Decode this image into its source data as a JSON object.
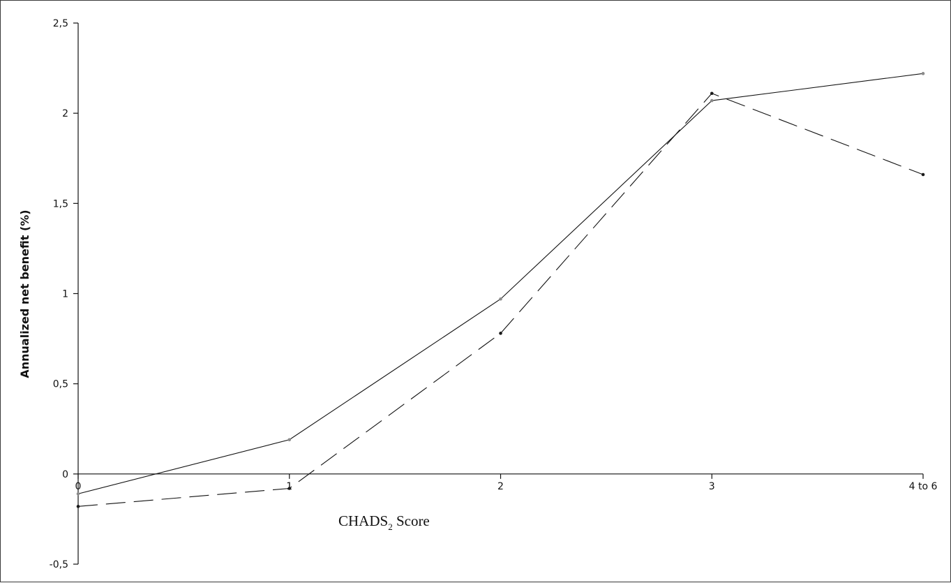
{
  "chart_data": {
    "type": "line",
    "title": "",
    "xlabel": "CHADS",
    "xlabel_sub": "2",
    "xlabel_suffix": " Score",
    "ylabel": "Annualized net benefit (%)",
    "categories": [
      "0",
      "1",
      "2",
      "3",
      "4 to 6"
    ],
    "y_ticks": [
      "2,5",
      "2",
      "1,5",
      "1",
      "0,5",
      "0",
      "-0,5"
    ],
    "y_tick_values": [
      2.5,
      2.0,
      1.5,
      1.0,
      0.5,
      0.0,
      -0.5
    ],
    "ylim": [
      -0.5,
      2.5
    ],
    "grid": false,
    "series": [
      {
        "values": [
          -0.11,
          0.19,
          0.97,
          2.07,
          2.22
        ],
        "line_style": "solid",
        "marker_color": "#8a8a8a"
      },
      {
        "values": [
          -0.18,
          -0.08,
          0.78,
          2.11,
          1.66
        ],
        "line_style": "dashed",
        "marker_color": "#1a1a1a"
      }
    ]
  }
}
